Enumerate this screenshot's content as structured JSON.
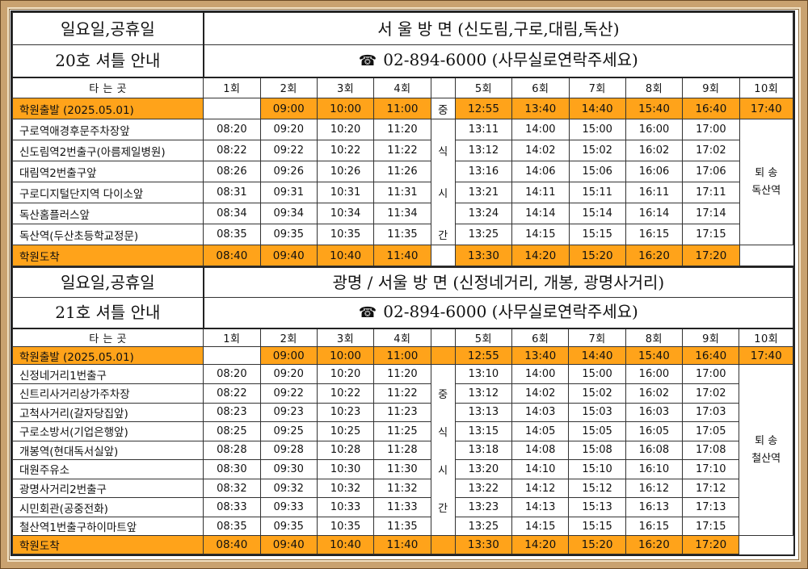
{
  "shuttle20": {
    "title_line1": "일요일,공휴일",
    "title_line2": "20호 셔틀 안내",
    "route_title": "서 울 방 면 (신도림,구로,대림,독산)",
    "phone_line": "02-894-6000  (사무실로연락주세요)",
    "phone_icon": "phone-icon",
    "col_location": "타 는 곳",
    "runs": [
      "1회",
      "2회",
      "3회",
      "4회",
      "",
      "5회",
      "6회",
      "7회",
      "8회",
      "9회",
      "10회"
    ],
    "depart_label": "학원출발 (2025.05.01)",
    "depart_times": [
      "",
      "09:00",
      "10:00",
      "11:00",
      "중",
      "12:55",
      "13:40",
      "14:40",
      "15:40",
      "16:40",
      "17:40"
    ],
    "stops": [
      {
        "name": "구로역애경후문주차장앞",
        "times": [
          "08:20",
          "09:20",
          "10:20",
          "11:20",
          "",
          "13:11",
          "14:00",
          "15:00",
          "16:00",
          "17:00"
        ]
      },
      {
        "name": "신도림역2번출구(아름제일병원)",
        "times": [
          "08:22",
          "09:22",
          "10:22",
          "11:22",
          "식",
          "13:12",
          "14:02",
          "15:02",
          "16:02",
          "17:02"
        ]
      },
      {
        "name": "대림역2번출구앞",
        "times": [
          "08:26",
          "09:26",
          "10:26",
          "11:26",
          "",
          "13:16",
          "14:06",
          "15:06",
          "16:06",
          "17:06"
        ]
      },
      {
        "name": "구로디지털단지역 다이소앞",
        "times": [
          "08:31",
          "09:31",
          "10:31",
          "11:31",
          "시",
          "13:21",
          "14:11",
          "15:11",
          "16:11",
          "17:11"
        ]
      },
      {
        "name": "독산홈플러스앞",
        "times": [
          "08:34",
          "09:34",
          "10:34",
          "11:34",
          "",
          "13:24",
          "14:14",
          "15:14",
          "16:14",
          "17:14"
        ]
      },
      {
        "name": "독산역(두산초등학교정문)",
        "times": [
          "08:35",
          "09:35",
          "10:35",
          "11:35",
          "간",
          "13:25",
          "14:15",
          "15:15",
          "16:15",
          "17:15"
        ]
      }
    ],
    "dropoff_line1": "퇴 송",
    "dropoff_line2": "독산역",
    "arrive_label": "학원도착",
    "arrive_times": [
      "08:40",
      "09:40",
      "10:40",
      "11:40",
      "",
      "13:30",
      "14:20",
      "15:20",
      "16:20",
      "17:20"
    ]
  },
  "shuttle21": {
    "title_line1": "일요일,공휴일",
    "title_line2": "21호 셔틀 안내",
    "route_title": "광명 / 서울 방 면 (신정네거리, 개봉, 광명사거리)",
    "phone_line": "02-894-6000  (사무실로연락주세요)",
    "phone_icon": "phone-icon",
    "col_location": "타 는 곳",
    "runs": [
      "1회",
      "2회",
      "3회",
      "4회",
      "",
      "5회",
      "6회",
      "7회",
      "8회",
      "9회",
      "10회"
    ],
    "depart_label": "학원출발 (2025.05.01)",
    "depart_times": [
      "",
      "09:00",
      "10:00",
      "11:00",
      "",
      "12:55",
      "13:40",
      "14:40",
      "15:40",
      "16:40",
      "17:40"
    ],
    "stops": [
      {
        "name": "신정네거리1번출구",
        "times": [
          "08:20",
          "09:20",
          "10:20",
          "11:20",
          "",
          "13:10",
          "14:00",
          "15:00",
          "16:00",
          "17:00"
        ]
      },
      {
        "name": "신트리사거리상가주차장",
        "times": [
          "08:22",
          "09:22",
          "10:22",
          "11:22",
          "중",
          "13:12",
          "14:02",
          "15:02",
          "16:02",
          "17:02"
        ]
      },
      {
        "name": "고척사거리(갈자당집앞)",
        "times": [
          "08:23",
          "09:23",
          "10:23",
          "11:23",
          "",
          "13:13",
          "14:03",
          "15:03",
          "16:03",
          "17:03"
        ]
      },
      {
        "name": "구로소방서(기업은행앞)",
        "times": [
          "08:25",
          "09:25",
          "10:25",
          "11:25",
          "식",
          "13:15",
          "14:05",
          "15:05",
          "16:05",
          "17:05"
        ]
      },
      {
        "name": "개봉역(현대독서실앞)",
        "times": [
          "08:28",
          "09:28",
          "10:28",
          "11:28",
          "",
          "13:18",
          "14:08",
          "15:08",
          "16:08",
          "17:08"
        ]
      },
      {
        "name": "대원주유소",
        "times": [
          "08:30",
          "09:30",
          "10:30",
          "11:30",
          "시",
          "13:20",
          "14:10",
          "15:10",
          "16:10",
          "17:10"
        ]
      },
      {
        "name": "광명사거리2번출구",
        "times": [
          "08:32",
          "09:32",
          "10:32",
          "11:32",
          "",
          "13:22",
          "14:12",
          "15:12",
          "16:12",
          "17:12"
        ]
      },
      {
        "name": "시민회관(공중전화)",
        "times": [
          "08:33",
          "09:33",
          "10:33",
          "11:33",
          "간",
          "13:23",
          "14:13",
          "15:13",
          "16:13",
          "17:13"
        ]
      },
      {
        "name": "철산역1번출구하이마트앞",
        "times": [
          "08:35",
          "09:35",
          "10:35",
          "11:35",
          "",
          "13:25",
          "14:15",
          "15:15",
          "16:15",
          "17:15"
        ]
      }
    ],
    "dropoff_line1": "퇴 송",
    "dropoff_line2": "철산역",
    "arrive_label": "학원도착",
    "arrive_times": [
      "08:40",
      "09:40",
      "10:40",
      "11:40",
      "",
      "13:30",
      "14:20",
      "15:20",
      "16:20",
      "17:20"
    ]
  },
  "colors": {
    "highlight": "#ffa31a",
    "frame": "#c9a270",
    "border": "#222222"
  }
}
